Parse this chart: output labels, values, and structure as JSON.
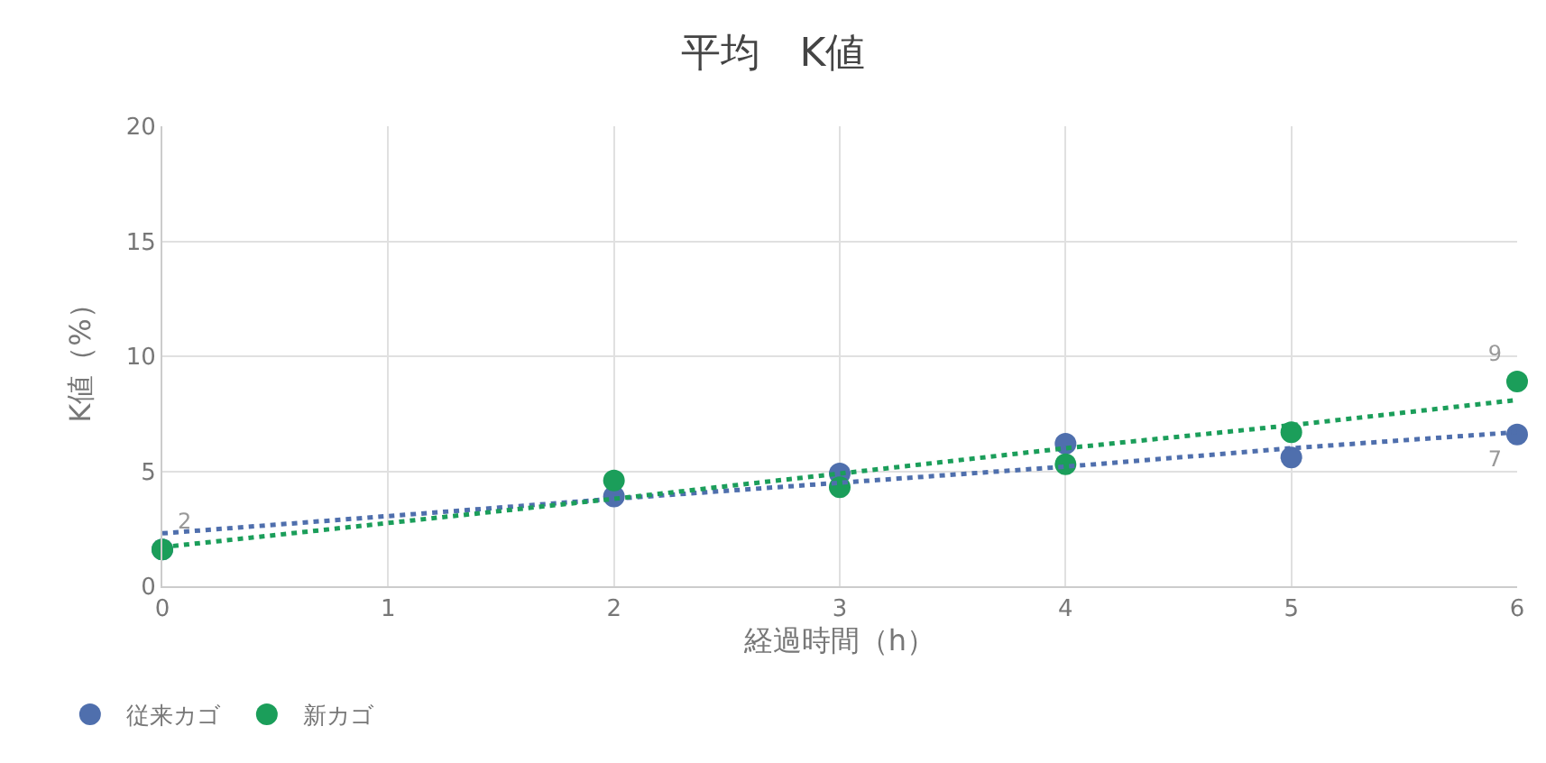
{
  "chart_data": {
    "type": "scatter",
    "title": "平均　K値",
    "xlabel": "経過時間（h）",
    "ylabel": "K値（%）",
    "x": [
      0,
      2,
      3,
      4,
      5,
      6
    ],
    "series": [
      {
        "name": "従来カゴ",
        "color": "#4f6fad",
        "values": [
          1.6,
          3.9,
          4.9,
          6.2,
          5.6,
          6.6
        ],
        "value_labels": [
          "2",
          null,
          null,
          null,
          null,
          "7"
        ]
      },
      {
        "name": "新カゴ",
        "color": "#1b9e5a",
        "values": [
          1.6,
          4.6,
          4.3,
          5.3,
          6.7,
          8.9
        ],
        "value_labels": [
          null,
          null,
          null,
          null,
          null,
          "9"
        ]
      },
      {
        "type": "line",
        "color": "#4f6fad",
        "values": [
          2.3,
          3.8,
          4.5,
          5.2,
          6.0,
          6.7
        ],
        "line_style": "dotted",
        "marker": "none"
      },
      {
        "type": "line",
        "color": "#1b9e5a",
        "values": [
          1.7,
          3.8,
          4.9,
          6.0,
          7.0,
          8.1
        ],
        "line_style": "dotted",
        "marker": "none"
      }
    ],
    "xlim": [
      0,
      6
    ],
    "xticks": [
      0,
      1,
      2,
      3,
      4,
      5,
      6
    ],
    "ylim": [
      0,
      20
    ],
    "yticks": [
      0,
      5,
      10,
      15,
      20
    ],
    "grid": true,
    "legend": "bottom left",
    "marker": "circle"
  }
}
